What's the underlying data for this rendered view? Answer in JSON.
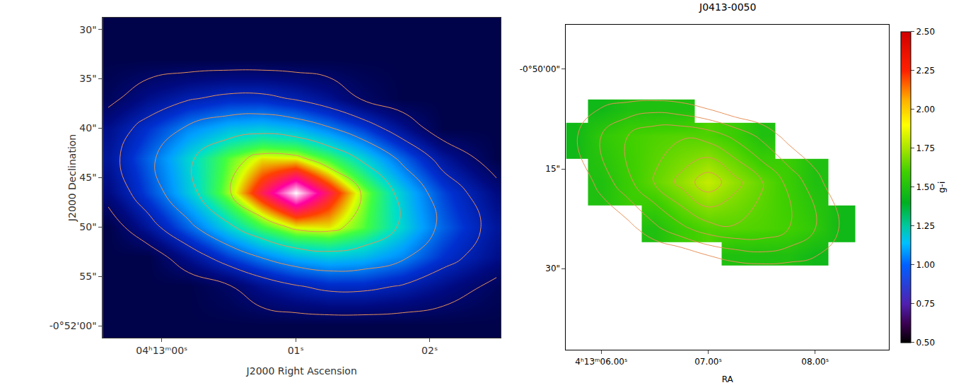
{
  "chart_data": [
    {
      "type": "heatmap",
      "x_label": "J2000 Right Ascension",
      "y_label": "J2000 Declination",
      "x": [
        -0.4,
        -0.1,
        0.2,
        0.5,
        0.75,
        1.0,
        1.25,
        1.5,
        1.8,
        2.1,
        2.5
      ],
      "y": [
        29,
        33,
        37,
        40,
        43,
        46.5,
        50,
        53,
        56,
        60
      ],
      "z": [
        [
          0.3,
          0.3,
          0.3,
          0.3,
          0.3,
          0.3,
          0.3,
          0.3,
          0.3,
          0.3,
          0.3
        ],
        [
          0.3,
          0.3,
          0.3,
          0.3,
          0.3,
          0.3,
          0.3,
          0.3,
          0.3,
          0.3,
          0.3
        ],
        [
          0.7,
          1.7,
          2.4,
          2.8,
          2.8,
          2.4,
          1.8,
          0.9,
          0.3,
          0.3,
          0.3
        ],
        [
          1.7,
          3.0,
          4.2,
          4.9,
          5.1,
          4.8,
          4.1,
          3.2,
          1.8,
          0.3,
          0.3
        ],
        [
          2.0,
          3.7,
          5.3,
          6.6,
          7.3,
          7.2,
          6.4,
          5.3,
          3.7,
          2.0,
          0.3
        ],
        [
          1.5,
          3.3,
          5.1,
          6.9,
          8.5,
          10,
          8.5,
          6.9,
          5.1,
          3.3,
          1.5
        ],
        [
          0.3,
          2.0,
          3.7,
          5.3,
          6.4,
          7.2,
          7.3,
          6.6,
          5.3,
          3.7,
          2.0
        ],
        [
          0.3,
          0.3,
          1.8,
          3.2,
          4.1,
          4.8,
          5.1,
          4.9,
          4.2,
          3.0,
          1.7
        ],
        [
          0.3,
          0.3,
          0.3,
          0.9,
          1.8,
          2.4,
          2.8,
          2.8,
          2.4,
          1.7,
          0.7
        ],
        [
          0.3,
          0.3,
          0.3,
          0.3,
          0.3,
          0.3,
          0.3,
          0.3,
          0.3,
          0.3,
          0.3
        ]
      ],
      "zlim": [
        0,
        10
      ],
      "contour_levels": [
        1,
        2.5,
        4,
        5.5,
        7
      ],
      "xlim": [
        -0.44,
        2.53
      ],
      "ylim": [
        61.2,
        28.8
      ],
      "xticks": [
        {
          "value": 0,
          "label": "04ʰ13ᵐ00ˢ"
        },
        {
          "value": 1,
          "label": "01ˢ"
        },
        {
          "value": 2,
          "label": "02ˢ"
        }
      ],
      "yticks": [
        {
          "value": 30,
          "label": "30\""
        },
        {
          "value": 35,
          "label": "35\""
        },
        {
          "value": 40,
          "label": "40\""
        },
        {
          "value": 45,
          "label": "45\""
        },
        {
          "value": 50,
          "label": "50\""
        },
        {
          "value": 55,
          "label": "55\""
        },
        {
          "value": 60,
          "label": "-0°52'00\""
        }
      ]
    },
    {
      "type": "heatmap",
      "title": "J0413-0050",
      "x_label": "RA",
      "x": [
        5.75,
        6.0,
        6.25,
        6.5,
        6.75,
        7.0,
        7.25,
        7.5,
        7.75,
        8.0,
        8.25,
        8.5
      ],
      "y": [
        -5,
        -1,
        3,
        6,
        10,
        17,
        24,
        28,
        31,
        35,
        40
      ],
      "z": [
        [
          null,
          null,
          null,
          null,
          null,
          null,
          null,
          null,
          null,
          null,
          null,
          null
        ],
        [
          null,
          null,
          null,
          null,
          null,
          null,
          null,
          null,
          null,
          null,
          null,
          null
        ],
        [
          null,
          null,
          null,
          null,
          null,
          null,
          null,
          null,
          null,
          null,
          null,
          null
        ],
        [
          null,
          1.45,
          1.5,
          1.5,
          1.5,
          null,
          null,
          null,
          null,
          null,
          null,
          null
        ],
        [
          1.45,
          1.55,
          1.6,
          1.62,
          1.63,
          1.62,
          1.58,
          1.5,
          null,
          null,
          null,
          null
        ],
        [
          null,
          1.5,
          1.58,
          1.65,
          1.72,
          1.8,
          1.72,
          1.65,
          1.58,
          1.5,
          null,
          null
        ],
        [
          null,
          null,
          null,
          1.5,
          1.58,
          1.62,
          1.63,
          1.62,
          1.6,
          1.55,
          1.45,
          null
        ],
        [
          null,
          null,
          null,
          null,
          null,
          null,
          1.5,
          1.5,
          1.5,
          1.45,
          null,
          null
        ],
        [
          null,
          null,
          null,
          null,
          null,
          null,
          null,
          null,
          null,
          null,
          null,
          null
        ],
        [
          null,
          null,
          null,
          null,
          null,
          null,
          null,
          null,
          null,
          null,
          null,
          null
        ],
        [
          null,
          null,
          null,
          null,
          null,
          null,
          null,
          null,
          null,
          null,
          null,
          null
        ]
      ],
      "isophotes": [
        [
          0,
          0,
          0,
          0,
          0,
          0,
          0,
          0,
          0,
          0,
          0,
          0
        ],
        [
          0,
          0,
          0,
          0,
          0,
          0,
          0,
          0,
          0,
          0,
          0,
          0
        ],
        [
          0,
          0,
          0,
          0,
          0,
          0,
          0,
          0,
          0,
          0,
          0,
          0
        ],
        [
          0.5,
          1.6,
          2.3,
          2.6,
          2.2,
          1.5,
          0.4,
          0,
          0,
          0,
          0,
          0
        ],
        [
          1.3,
          3.0,
          4.5,
          5.6,
          5.8,
          5.3,
          4.1,
          2.6,
          0.9,
          0,
          0,
          0
        ],
        [
          0.1,
          2.1,
          4.1,
          6.1,
          8.0,
          10,
          8.0,
          6.1,
          4.1,
          2.1,
          0.1,
          0
        ],
        [
          0,
          0,
          0.9,
          2.6,
          4.1,
          5.3,
          5.8,
          5.6,
          4.5,
          3.0,
          1.3,
          0
        ],
        [
          0,
          0,
          0,
          0,
          0.4,
          1.5,
          2.2,
          2.6,
          2.3,
          1.6,
          0.5,
          0
        ],
        [
          0,
          0,
          0,
          0,
          0,
          0,
          0,
          0,
          0,
          0,
          0,
          0
        ],
        [
          0,
          0,
          0,
          0,
          0,
          0,
          0,
          0,
          0,
          0,
          0,
          0
        ],
        [
          0,
          0,
          0,
          0,
          0,
          0,
          0,
          0,
          0,
          0,
          0,
          0
        ]
      ],
      "contour_levels": [
        1.5,
        3,
        4.5,
        6,
        7.5,
        9
      ],
      "xlim": [
        5.67,
        8.69
      ],
      "ylim": [
        42.2,
        -6.7
      ],
      "xticks": [
        {
          "value": 6,
          "label": "4ʰ13ᵐ06.00ˢ"
        },
        {
          "value": 7,
          "label": "07.00ˢ"
        },
        {
          "value": 8,
          "label": "08.00ˢ"
        }
      ],
      "yticks": [
        {
          "value": 0,
          "label": "-0°50'00\""
        },
        {
          "value": 15,
          "label": "15\""
        },
        {
          "value": 30,
          "label": "30\""
        }
      ],
      "colorbar": {
        "title": "g-i",
        "range": [
          0.5,
          2.5
        ],
        "ticks": [
          {
            "value": 0.5,
            "label": "0.50"
          },
          {
            "value": 0.75,
            "label": "0.75"
          },
          {
            "value": 1.0,
            "label": "1.00"
          },
          {
            "value": 1.25,
            "label": "1.25"
          },
          {
            "value": 1.5,
            "label": "1.50"
          },
          {
            "value": 1.75,
            "label": "1.75"
          },
          {
            "value": 2.0,
            "label": "2.00"
          },
          {
            "value": 2.25,
            "label": "2.25"
          },
          {
            "value": 2.5,
            "label": "2.50"
          }
        ]
      }
    }
  ]
}
